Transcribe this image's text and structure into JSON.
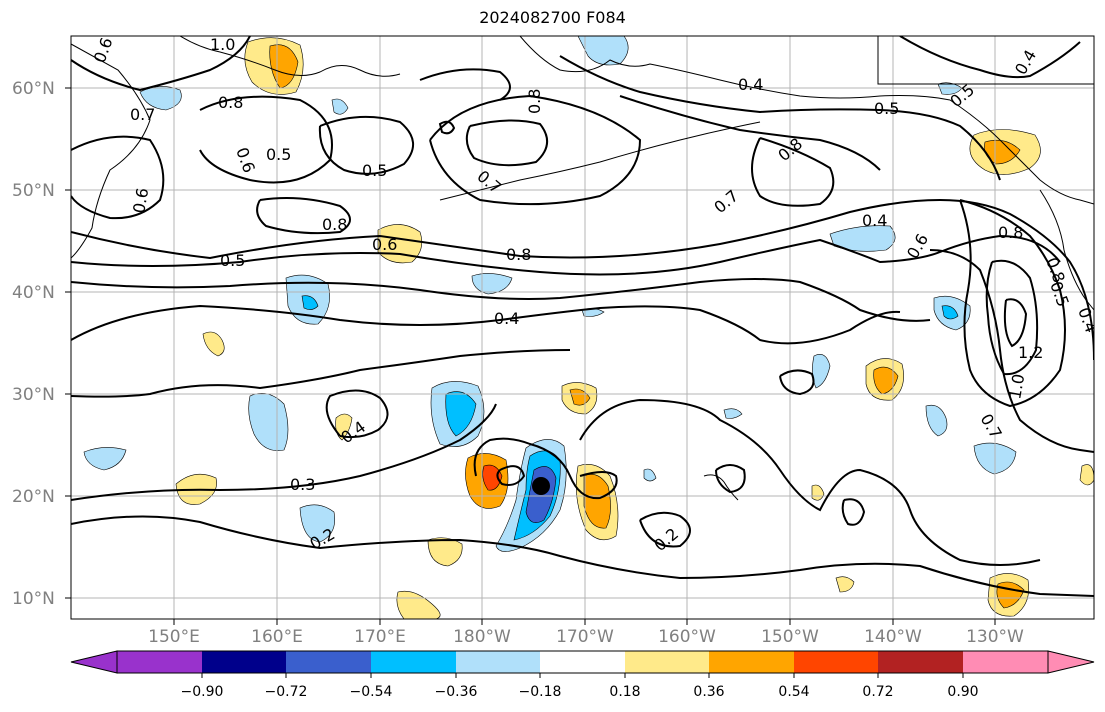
{
  "title": "2024082700 F084",
  "lat_labels": [
    "60°N",
    "50°N",
    "40°N",
    "30°N",
    "20°N",
    "10°N"
  ],
  "lon_labels": [
    "150°E",
    "160°E",
    "170°E",
    "180°W",
    "170°W",
    "160°W",
    "150°W",
    "140°W",
    "130°W"
  ],
  "colorbar": {
    "tick_labels": [
      "−0.90",
      "−0.72",
      "−0.54",
      "−0.36",
      "−0.18",
      "0.18",
      "0.36",
      "0.54",
      "0.72",
      "0.90"
    ],
    "colors": [
      "#9932cc",
      "#00008b",
      "#3a5fcd",
      "#00bfff",
      "#b0e0fa",
      "#ffffff",
      "#ffea8a",
      "#ffa500",
      "#ff4500",
      "#b22222",
      "#ff8cb4"
    ]
  },
  "contour_labels": [
    "0.6",
    "1.0",
    "0.8",
    "0.7",
    "0.5",
    "0.6",
    "0.5",
    "0.5",
    "0.8",
    "0.7",
    "0.8",
    "0.6",
    "0.6",
    "0.8",
    "0.5",
    "0.8",
    "0.7",
    "0.4",
    "0.5",
    "0.4",
    "0.8",
    "0.6",
    "0.8",
    "0.5",
    "0.4",
    "0.4",
    "0.3",
    "0.2",
    "0.2",
    "0.4",
    "1.2",
    "1.0",
    "0.7",
    "0.4"
  ],
  "storm_marker": {
    "lat": 21.0,
    "lon": -174.0
  }
}
